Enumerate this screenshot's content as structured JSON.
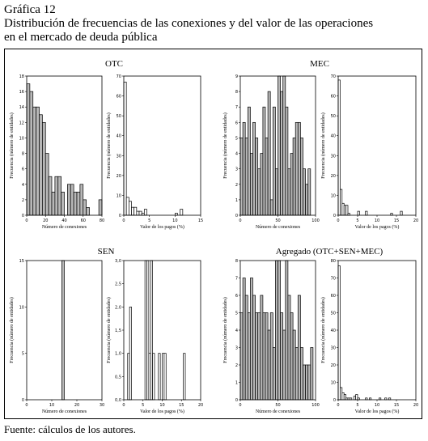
{
  "header": {
    "figure_label": "Gráfica 12",
    "title_line1": "Distribución de frecuencias de las conexiones y del valor de las operaciones",
    "title_line2": "en el mercado de deuda pública"
  },
  "footer": {
    "source": "Fuente: cálculos de los autores."
  },
  "colors": {
    "connections_fill": "#b8b8b8",
    "payments_fill": "#ffffff",
    "stroke": "#000000"
  },
  "chart_data": [
    {
      "type": "bar",
      "group_title": "OTC",
      "xlabel": "Número de conexiones",
      "ylabel": "Frecuencia (número de entidades)",
      "xlim": [
        0,
        80
      ],
      "ylim": [
        0,
        18
      ],
      "xticks": [
        0,
        20,
        40,
        60,
        80
      ],
      "yticks": [
        0,
        2,
        4,
        6,
        8,
        10,
        12,
        14,
        16,
        18
      ],
      "bin_width": 3.333,
      "x": [
        0,
        3.333,
        6.667,
        10,
        13.333,
        16.667,
        20,
        23.333,
        26.667,
        30,
        33.333,
        36.667,
        40,
        43.333,
        46.667,
        50,
        53.333,
        56.667,
        60,
        63.333,
        66.667,
        70,
        73.333,
        76.667
      ],
      "values": [
        17,
        16,
        14,
        14,
        13,
        12,
        8,
        5,
        3,
        5,
        5,
        3,
        0,
        4,
        4,
        3,
        3,
        4,
        2,
        1,
        0,
        0,
        0,
        2
      ]
    },
    {
      "type": "bar",
      "group_title": "OTC",
      "xlabel": "Valor de los pagos (%)",
      "ylabel": "Frecuencia (número de entidades)",
      "xlim": [
        0,
        15
      ],
      "ylim": [
        0,
        70
      ],
      "xticks": [
        0,
        5,
        10,
        15
      ],
      "yticks": [
        0,
        10,
        20,
        30,
        40,
        50,
        60,
        70
      ],
      "bin_width": 0.5,
      "x": [
        0,
        0.5,
        1,
        1.5,
        2,
        2.5,
        3,
        3.5,
        4,
        4.5,
        5,
        5.5,
        6,
        6.5,
        7,
        7.5,
        8,
        8.5,
        9,
        9.5,
        10,
        10.5,
        11,
        11.5,
        12,
        12.5,
        13,
        13.5,
        14,
        14.5
      ],
      "values": [
        67,
        9,
        7,
        4,
        4,
        2,
        2,
        1,
        3,
        0,
        0,
        0,
        0,
        0,
        0,
        0,
        0,
        0,
        0,
        0,
        1,
        0,
        3,
        0,
        0,
        0,
        0,
        0,
        0,
        0
      ]
    },
    {
      "type": "bar",
      "group_title": "MEC",
      "xlabel": "Número de conexiones",
      "ylabel": "Frecuencia (número de entidades)",
      "xlim": [
        0,
        100
      ],
      "ylim": [
        0,
        9
      ],
      "xticks": [
        0,
        50,
        100
      ],
      "yticks": [
        0,
        1,
        2,
        3,
        4,
        5,
        6,
        7,
        8,
        9
      ],
      "bin_width": 3.333,
      "x": [
        0,
        3.333,
        6.667,
        10,
        13.333,
        16.667,
        20,
        23.333,
        26.667,
        30,
        33.333,
        36.667,
        40,
        43.333,
        46.667,
        50,
        53.333,
        56.667,
        60,
        63.333,
        66.667,
        70,
        73.333,
        76.667,
        80,
        83.333,
        86.667,
        90,
        93.333,
        96.667
      ],
      "values": [
        5,
        6,
        5,
        7,
        4,
        6,
        5,
        3,
        4,
        7,
        5,
        8,
        1,
        7,
        3,
        9,
        8,
        9,
        7,
        3,
        4,
        5,
        6,
        6,
        5,
        3,
        2,
        3,
        0,
        0
      ]
    },
    {
      "type": "bar",
      "group_title": "MEC",
      "xlabel": "Valor de los pagos (%)",
      "ylabel": "Frecuencia (número de entidades)",
      "xlim": [
        0,
        20
      ],
      "ylim": [
        0,
        70
      ],
      "xticks": [
        0,
        5,
        10,
        15,
        20
      ],
      "yticks": [
        0,
        10,
        20,
        30,
        40,
        50,
        60,
        70
      ],
      "bin_width": 0.5,
      "x": [
        0,
        0.5,
        1,
        1.5,
        2,
        2.5,
        3,
        3.5,
        4,
        4.5,
        5,
        5.5,
        6,
        6.5,
        7,
        7.5,
        8,
        8.5,
        9,
        9.5,
        10,
        10.5,
        11,
        11.5,
        12,
        12.5,
        13,
        13.5,
        14,
        14.5,
        15,
        15.5,
        16,
        16.5,
        17,
        17.5,
        18,
        18.5,
        19,
        19.5
      ],
      "values": [
        68,
        13,
        6,
        5,
        5,
        1,
        0,
        0,
        0,
        0,
        2,
        0,
        0,
        0,
        2,
        0,
        0,
        0,
        0,
        0,
        0,
        0,
        0,
        0,
        0,
        0,
        0,
        1,
        0,
        0,
        0,
        0,
        2,
        0,
        0,
        0,
        0,
        0,
        0,
        0
      ]
    },
    {
      "type": "bar",
      "group_title": "SEN",
      "xlabel": "Número de conexiones",
      "ylabel": "Frecuencia (número de entidades)",
      "xlim": [
        0,
        30
      ],
      "ylim": [
        0,
        15
      ],
      "xticks": [
        0,
        10,
        20,
        30
      ],
      "yticks": [
        0,
        5,
        10,
        15
      ],
      "bin_width": 1,
      "x": [
        14
      ],
      "values": [
        15
      ]
    },
    {
      "type": "bar",
      "group_title": "SEN",
      "xlabel": "Valor de los pagos (%)",
      "ylabel": "Frecuencia (número de entidades)",
      "xlim": [
        0,
        20
      ],
      "ylim": [
        0,
        3
      ],
      "xticks": [
        0,
        5,
        10,
        15,
        20
      ],
      "yticks": [
        "0,0",
        "0,5",
        "1,0",
        "1,5",
        "2,0",
        "2,5",
        "3,0"
      ],
      "bin_width": 0.5,
      "x": [
        1,
        1.5,
        5,
        5.5,
        6,
        6.5,
        7,
        7.5,
        8,
        8.5,
        9,
        9.5,
        10,
        10.5,
        11,
        11.5,
        15.5
      ],
      "values": [
        1,
        2,
        0,
        3,
        3,
        1,
        3,
        1,
        0,
        0,
        1,
        0,
        1,
        1,
        0,
        0,
        1
      ]
    },
    {
      "type": "bar",
      "group_title": "Agregado (OTC+SEN+MEC)",
      "xlabel": "Número de conexiones",
      "ylabel": "Frecuencia (número de entidades)",
      "xlim": [
        0,
        100
      ],
      "ylim": [
        0,
        8
      ],
      "xticks": [
        0,
        50,
        100
      ],
      "yticks": [
        0,
        1,
        2,
        3,
        4,
        5,
        6,
        7,
        8
      ],
      "bin_width": 3.333,
      "x": [
        0,
        3.333,
        6.667,
        10,
        13.333,
        16.667,
        20,
        23.333,
        26.667,
        30,
        33.333,
        36.667,
        40,
        43.333,
        46.667,
        50,
        53.333,
        56.667,
        60,
        63.333,
        66.667,
        70,
        73.333,
        76.667,
        80,
        83.333,
        86.667,
        90,
        93.333,
        96.667
      ],
      "values": [
        5,
        7,
        6,
        5,
        7,
        6,
        5,
        5,
        6,
        5,
        5,
        4,
        5,
        3,
        8,
        8,
        5,
        4,
        8,
        6,
        5,
        4,
        3,
        6,
        3,
        2,
        2,
        2,
        3,
        0
      ]
    },
    {
      "type": "bar",
      "group_title": "Agregado (OTC+SEN+MEC)",
      "xlabel": "Valor de los pagos (%)",
      "ylabel": "Frecuencia (número de entidades)",
      "xlim": [
        0,
        20
      ],
      "ylim": [
        0,
        80
      ],
      "xticks": [
        0,
        5,
        10,
        15,
        20
      ],
      "yticks": [
        0,
        10,
        20,
        30,
        40,
        50,
        60,
        70,
        80
      ],
      "bin_width": 0.5,
      "x": [
        0,
        0.5,
        1,
        1.5,
        2,
        2.5,
        3,
        3.5,
        4,
        4.5,
        5,
        5.5,
        6,
        6.5,
        7,
        7.5,
        8,
        8.5,
        9,
        9.5,
        10,
        10.5,
        11,
        11.5,
        12,
        12.5,
        13,
        13.5,
        14,
        14.5,
        15,
        15.5,
        16,
        16.5,
        17,
        17.5,
        18,
        18.5,
        19,
        19.5
      ],
      "values": [
        77,
        7,
        4,
        3,
        1,
        1,
        1,
        0,
        2,
        3,
        1,
        0,
        0,
        0,
        1,
        0,
        1,
        0,
        0,
        0,
        0,
        1,
        0,
        0,
        1,
        0,
        1,
        0,
        0,
        0,
        0,
        0,
        0,
        0,
        0,
        0,
        0,
        0,
        0,
        0
      ]
    }
  ]
}
